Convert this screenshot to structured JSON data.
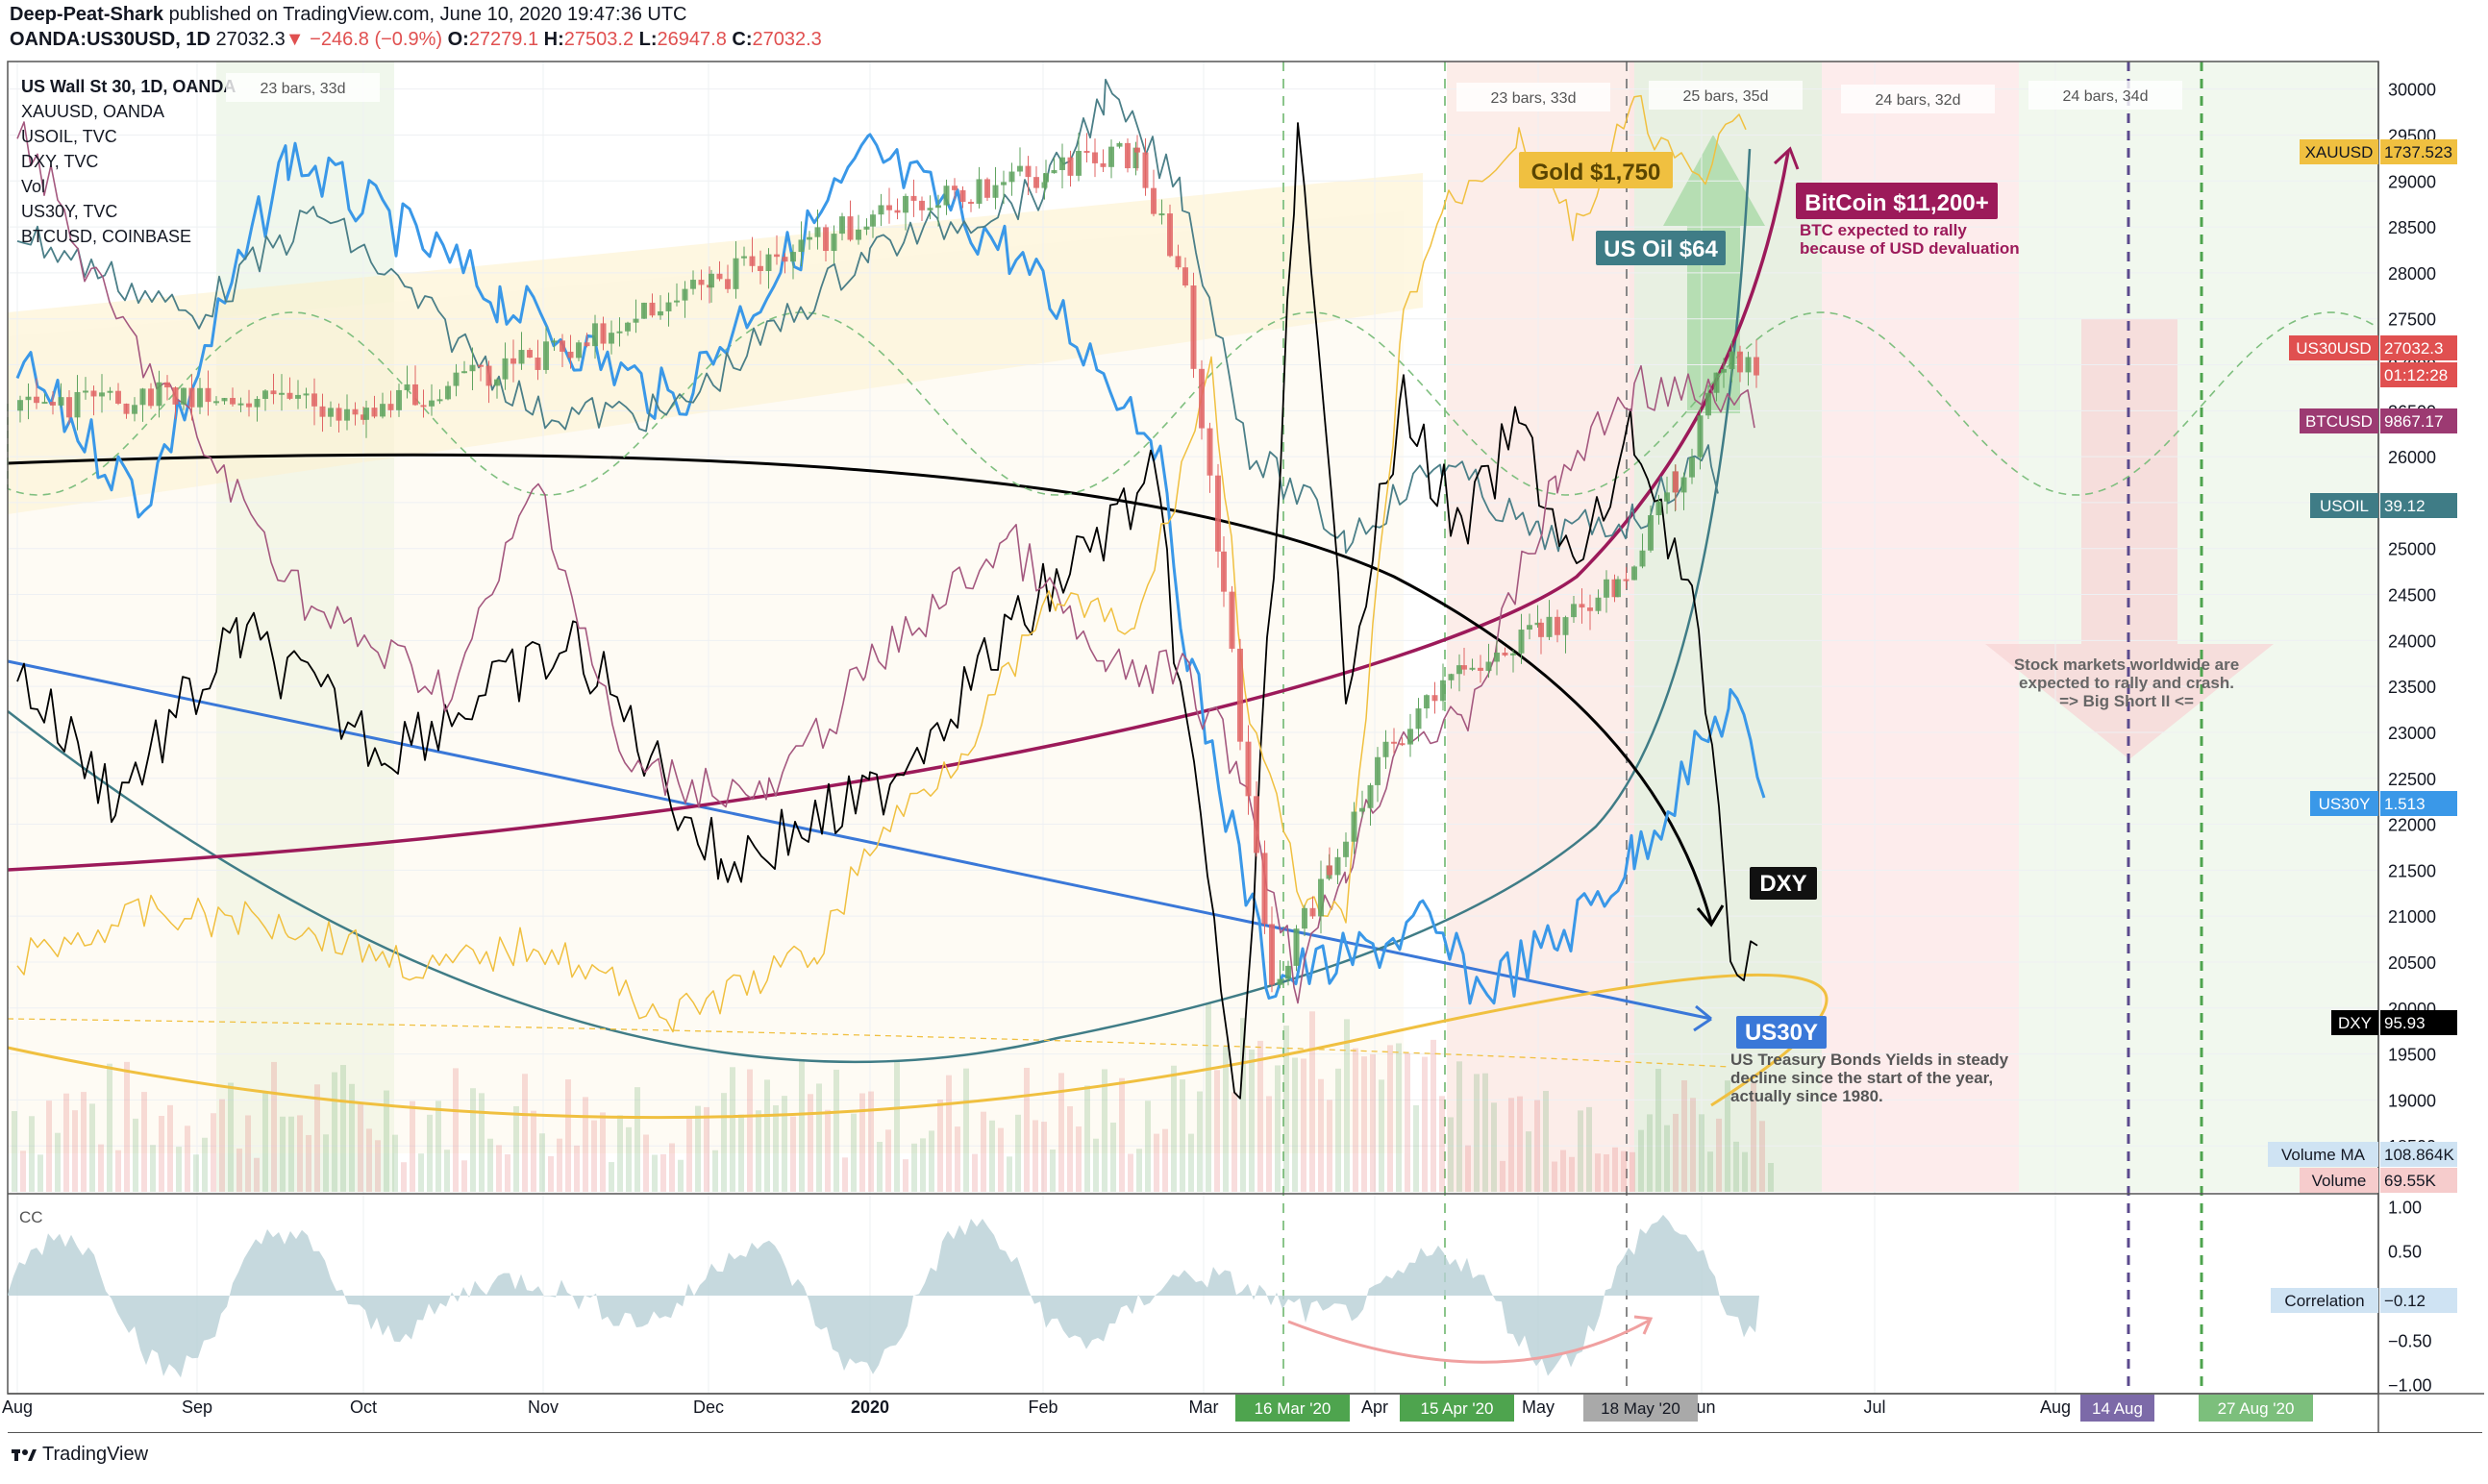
{
  "header": {
    "author": "Deep-Peat-Shark",
    "published_text": "published on TradingView.com, June 10, 2020 19:47:36 UTC",
    "symbol": "OANDA:US30USD, 1D",
    "last": "27032.3",
    "change": "−246.8 (−0.9%)",
    "o_label": "O:",
    "o_value": "27279.1",
    "h_label": "H:",
    "h_value": "27503.2",
    "l_label": "L:",
    "l_value": "26947.8",
    "c_label": "C:",
    "c_value": "27032.3"
  },
  "legend": [
    "US Wall St 30, 1D, OANDA",
    "XAUUSD, OANDA",
    "USOIL, TVC",
    "DXY, TVC",
    "Vol",
    "US30Y, TVC",
    "BTCUSD, COINBASE"
  ],
  "bars_labels": [
    "23 bars, 33d",
    "23 bars, 33d",
    "25 bars, 35d",
    "24 bars, 32d",
    "24 bars, 34d"
  ],
  "annotations": {
    "gold": "Gold $1,750",
    "oil": "US Oil $64",
    "bitcoin": "BitCoin $11,200+",
    "bitcoin_note1": "BTC expected to rally",
    "bitcoin_note2": "because of USD devaluation",
    "dxy": "DXY",
    "us30y": "US30Y",
    "us30y_note1": "US Treasury Bonds Yields in steady",
    "us30y_note2": "decline since the start of the year,",
    "us30y_note3": "actually since 1980.",
    "stocks_note1": "Stock markets worldwide are",
    "stocks_note2": "expected to rally and crash.",
    "stocks_note3": "=> Big Short II <="
  },
  "price_tags": [
    {
      "label": "XAUUSD",
      "value": "1737.523",
      "color": "#f0c040",
      "text": "#131722"
    },
    {
      "label": "US30USD",
      "value": "27032.3",
      "color": "#e05050",
      "text": "#ffffff"
    },
    {
      "label": "",
      "value": "01:12:28",
      "color": "#e05050",
      "text": "#ffffff"
    },
    {
      "label": "BTCUSD",
      "value": "9867.17",
      "color": "#9c3a72",
      "text": "#ffffff"
    },
    {
      "label": "USOIL",
      "value": "39.12",
      "color": "#3f7c86",
      "text": "#ffffff"
    },
    {
      "label": "US30Y",
      "value": "1.513",
      "color": "#3a98e8",
      "text": "#ffffff"
    },
    {
      "label": "DXY",
      "value": "95.93",
      "color": "#000000",
      "text": "#ffffff"
    },
    {
      "label": "Volume MA",
      "value": "108.864K",
      "color": "#cfe3f3",
      "text": "#131722"
    },
    {
      "label": "Volume",
      "value": "69.55K",
      "color": "#f6cccc",
      "text": "#131722"
    }
  ],
  "indicator": {
    "label": "CC",
    "tag_label": "Correlation",
    "tag_value": "−0.12"
  },
  "date_tags": [
    "16 Mar '20",
    "15 Apr '20",
    "18 May '20",
    "14 Aug",
    "27 Aug '20"
  ],
  "footer": {
    "brand": "TradingView"
  },
  "colors": {
    "up": "#5fa35f",
    "down": "#e06565",
    "gold": "#f0c040",
    "oil": "#3f7c86",
    "dxy": "#000000",
    "us30y": "#3a98e8",
    "btc": "#9c1a5a",
    "trend_blue": "#3a78d8",
    "cc_fill": "#b8cfd6"
  },
  "chart_data": {
    "type": "line",
    "title": "US Wall St 30, 1D, OANDA",
    "x_ticks": [
      "Aug",
      "Sep",
      "Oct",
      "Nov",
      "Dec",
      "2020",
      "Feb",
      "Mar",
      "Apr",
      "May",
      "Jun",
      "Jul",
      "Aug"
    ],
    "y_ticks": [
      30000,
      29500,
      29000,
      28500,
      28000,
      27500,
      27000,
      26500,
      26000,
      25500,
      25000,
      24500,
      24000,
      23500,
      23000,
      22500,
      22000,
      21500,
      21000,
      20500,
      20000,
      19500,
      19000,
      18500
    ],
    "ylim": [
      18000,
      30300
    ],
    "cc_ticks": [
      "1.00",
      "0.50",
      "0.00",
      "−0.50",
      "−1.00"
    ],
    "cc_ylim": [
      -1.1,
      1.1
    ],
    "series": [
      {
        "name": "US Wall St 30, 1D, OANDA",
        "x": [
          "Aug",
          "Sep",
          "Oct",
          "Nov",
          "Dec",
          "2020",
          "Feb",
          "Mar",
          "Apr",
          "May",
          "Jun"
        ],
        "values": [
          26500,
          26400,
          26900,
          27100,
          27800,
          28500,
          28800,
          25500,
          22300,
          23700,
          25700
        ]
      },
      {
        "name": "XAUUSD",
        "values": [
          1430,
          1520,
          1510,
          1490,
          1460,
          1520,
          1580,
          1600,
          1690,
          1720,
          1737.5
        ]
      },
      {
        "name": "USOIL",
        "values": [
          56,
          55,
          53,
          54,
          56,
          61,
          51,
          31,
          20,
          30,
          39.12
        ]
      },
      {
        "name": "DXY",
        "values": [
          98,
          98.5,
          99,
          97.5,
          97.7,
          96.8,
          98,
          99.5,
          100,
          99.7,
          95.93
        ]
      },
      {
        "name": "US30Y",
        "values": [
          2.5,
          2.1,
          2.1,
          2.3,
          2.2,
          2.3,
          2.0,
          1.6,
          1.3,
          1.35,
          1.513
        ]
      },
      {
        "name": "BTCUSD",
        "values": [
          11000,
          10500,
          8300,
          9200,
          7300,
          7200,
          9400,
          6000,
          6800,
          9300,
          9867.17
        ]
      }
    ]
  }
}
